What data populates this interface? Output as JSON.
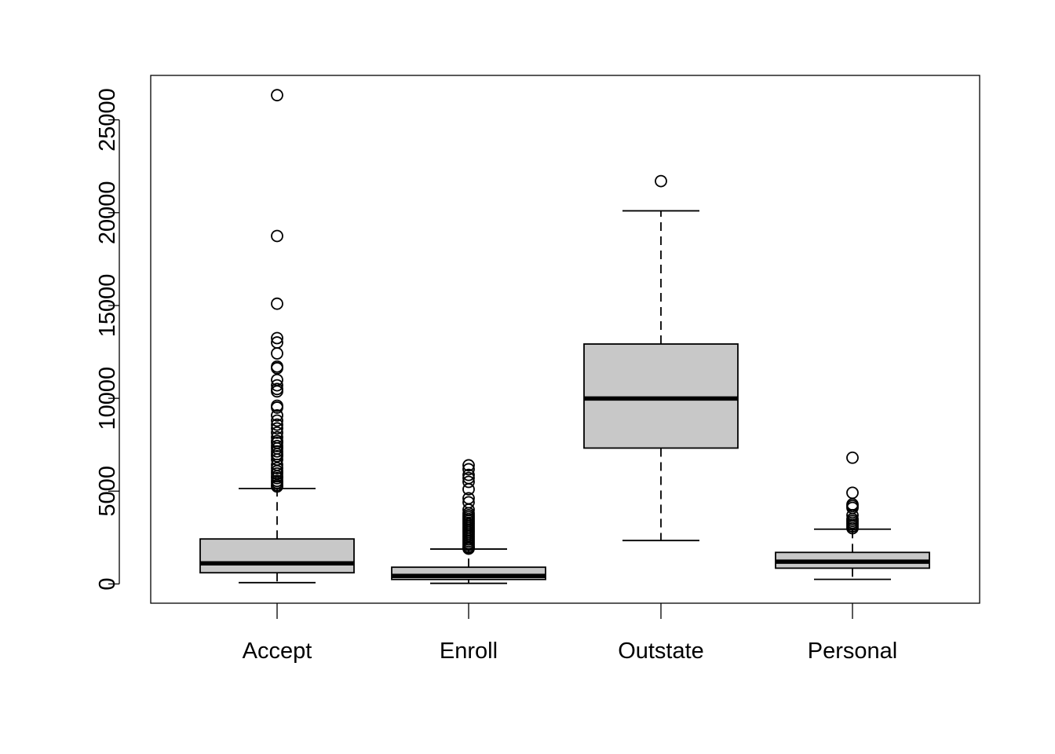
{
  "chart_data": {
    "type": "boxplot",
    "title": "",
    "xlabel": "",
    "ylabel": "",
    "ylim": [
      -1000,
      27500
    ],
    "y_ticks": [
      "0",
      "5000",
      "10000",
      "15000",
      "20000",
      "25000"
    ],
    "grid": false,
    "box_fill": "#c8c8c8",
    "categories": [
      "Accept",
      "Enroll",
      "Outstate",
      "Personal"
    ],
    "series": [
      {
        "category": "Accept",
        "whisker_low": 72,
        "q1": 604,
        "median": 1110,
        "q3": 2424,
        "whisker_high": 5140,
        "outliers": [
          26330,
          18744,
          15096,
          13243,
          13007,
          12418,
          11710,
          11622,
          10990,
          10700,
          10500,
          10373,
          9600,
          9500,
          9080,
          8800,
          8580,
          8380,
          8150,
          7900,
          7700,
          7600,
          7430,
          7300,
          7140,
          6990,
          6880,
          6700,
          6420,
          6240,
          6080,
          5950,
          5800,
          5700,
          5550,
          5450,
          5330,
          5250
        ]
      },
      {
        "category": "Enroll",
        "whisker_low": 35,
        "q1": 242,
        "median": 434,
        "q3": 902,
        "whisker_high": 1880,
        "outliers": [
          6392,
          6180,
          5874,
          5705,
          5500,
          5100,
          4615,
          4400,
          4000,
          3810,
          3700,
          3600,
          3500,
          3400,
          3300,
          3200,
          3100,
          3000,
          2900,
          2800,
          2700,
          2600,
          2500,
          2400,
          2300,
          2200,
          2100,
          2000,
          1950,
          1900
        ]
      },
      {
        "category": "Outstate",
        "whisker_low": 2340,
        "q1": 7320,
        "median": 9990,
        "q3": 12925,
        "whisker_high": 20100,
        "outliers": [
          21700
        ]
      },
      {
        "category": "Personal",
        "whisker_low": 250,
        "q1": 850,
        "median": 1200,
        "q3": 1700,
        "whisker_high": 2950,
        "outliers": [
          6800,
          4913,
          4288,
          4200,
          4100,
          3700,
          3500,
          3400,
          3300,
          3200,
          3100,
          3000
        ]
      }
    ]
  }
}
